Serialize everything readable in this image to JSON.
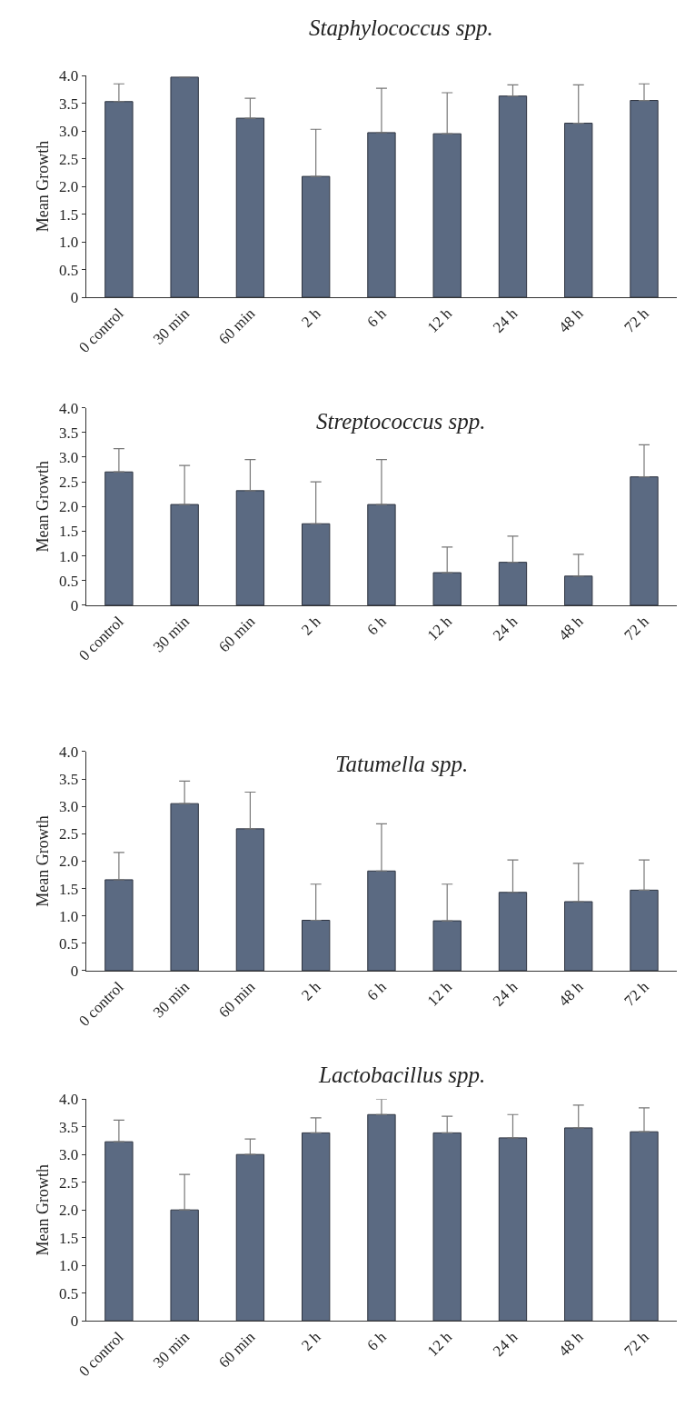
{
  "chart_data": [
    {
      "type": "bar",
      "title": "Staphylococcus spp.",
      "ylabel": "Mean Growth",
      "categories": [
        "0 control",
        "30 min",
        "60 min",
        "2 h",
        "6 h",
        "12 h",
        "24 h",
        "48 h",
        "72 h"
      ],
      "color": "#5b6a82",
      "values": [
        3.53,
        3.97,
        3.23,
        2.18,
        2.97,
        2.95,
        3.63,
        3.14,
        3.55
      ],
      "errors": [
        [
          3.53,
          3.85
        ],
        null,
        [
          3.23,
          3.59
        ],
        [
          2.18,
          3.03
        ],
        [
          2.97,
          3.77
        ],
        [
          2.95,
          3.69
        ],
        [
          3.63,
          3.83
        ],
        [
          3.14,
          3.83
        ],
        [
          3.55,
          3.85
        ]
      ],
      "ylim": [
        0,
        4
      ],
      "yticks": [
        {
          "value": 0,
          "label": "0"
        },
        {
          "value": 0.5,
          "label": "0.5"
        },
        {
          "value": 1,
          "label": "1.0"
        },
        {
          "value": 1.5,
          "label": "1.5"
        },
        {
          "value": 2,
          "label": "2.0"
        },
        {
          "value": 2.5,
          "label": "2.5"
        },
        {
          "value": 3,
          "label": "3.0"
        },
        {
          "value": 3.5,
          "label": "3.5"
        },
        {
          "value": 4,
          "label": "4.0"
        }
      ]
    },
    {
      "type": "bar",
      "title": "Streptococcus spp.",
      "ylabel": "Mean Growth",
      "categories": [
        "0 control",
        "30 min",
        "60 min",
        "2 h",
        "6 h",
        "12 h",
        "24 h",
        "48 h",
        "72 h"
      ],
      "color": "#5b6a82",
      "values": [
        2.7,
        2.04,
        2.32,
        1.65,
        2.04,
        0.66,
        0.87,
        0.59,
        2.6
      ],
      "errors": [
        [
          2.7,
          3.17
        ],
        [
          2.04,
          2.83
        ],
        [
          2.32,
          2.95
        ],
        [
          1.65,
          2.5
        ],
        [
          2.04,
          2.95
        ],
        [
          0.66,
          1.18
        ],
        [
          0.87,
          1.4
        ],
        [
          0.59,
          1.03
        ],
        [
          2.6,
          3.25
        ]
      ],
      "ylim": [
        0,
        4
      ],
      "yticks": [
        {
          "value": 0,
          "label": "0"
        },
        {
          "value": 0.5,
          "label": "0.5"
        },
        {
          "value": 1,
          "label": "1.0"
        },
        {
          "value": 1.5,
          "label": "1.5"
        },
        {
          "value": 2,
          "label": "2.0"
        },
        {
          "value": 2.5,
          "label": "2.5"
        },
        {
          "value": 3,
          "label": "3.0"
        },
        {
          "value": 3.5,
          "label": "3.5"
        },
        {
          "value": 4,
          "label": "4.0"
        }
      ]
    },
    {
      "type": "bar",
      "title": "Tatumella spp.",
      "ylabel": "Mean Growth",
      "categories": [
        "0 control",
        "30 min",
        "60 min",
        "2 h",
        "6 h",
        "12 h",
        "24 h",
        "48 h",
        "72 h"
      ],
      "color": "#5b6a82",
      "values": [
        1.66,
        3.05,
        2.59,
        0.92,
        1.82,
        0.91,
        1.43,
        1.26,
        1.47
      ],
      "errors": [
        [
          1.66,
          2.16
        ],
        [
          3.05,
          3.46
        ],
        [
          2.59,
          3.26
        ],
        [
          0.92,
          1.58
        ],
        [
          1.82,
          2.68
        ],
        [
          0.91,
          1.58
        ],
        [
          1.43,
          2.02
        ],
        [
          1.26,
          1.96
        ],
        [
          1.47,
          2.02
        ]
      ],
      "ylim": [
        0,
        4
      ],
      "yticks": [
        {
          "value": 0,
          "label": "0"
        },
        {
          "value": 0.5,
          "label": "0.5"
        },
        {
          "value": 1,
          "label": "1.0"
        },
        {
          "value": 1.5,
          "label": "1.5"
        },
        {
          "value": 2,
          "label": "2.0"
        },
        {
          "value": 2.5,
          "label": "2.5"
        },
        {
          "value": 3,
          "label": "3.0"
        },
        {
          "value": 3.5,
          "label": "3.5"
        },
        {
          "value": 4,
          "label": "4.0"
        }
      ]
    },
    {
      "type": "bar",
      "title": "Lactobacillus spp.",
      "ylabel": "Mean Growth",
      "categories": [
        "0 control",
        "30 min",
        "60 min",
        "2 h",
        "6 h",
        "12 h",
        "24 h",
        "48 h",
        "72 h"
      ],
      "color": "#5b6a82",
      "values": [
        3.23,
        2.0,
        3.0,
        3.39,
        3.72,
        3.39,
        3.3,
        3.48,
        3.41
      ],
      "errors": [
        [
          3.23,
          3.62
        ],
        [
          2.0,
          2.64
        ],
        [
          3.0,
          3.28
        ],
        [
          3.39,
          3.66
        ],
        [
          3.72,
          4.0
        ],
        [
          3.39,
          3.69
        ],
        [
          3.3,
          3.72
        ],
        [
          3.48,
          3.89
        ],
        [
          3.41,
          3.84
        ]
      ],
      "ylim": [
        0,
        4
      ],
      "yticks": [
        {
          "value": 0,
          "label": "0"
        },
        {
          "value": 0.5,
          "label": "0.5"
        },
        {
          "value": 1,
          "label": "1.0"
        },
        {
          "value": 1.5,
          "label": "1.5"
        },
        {
          "value": 2,
          "label": "2.0"
        },
        {
          "value": 2.5,
          "label": "2.5"
        },
        {
          "value": 3,
          "label": "3.0"
        },
        {
          "value": 3.5,
          "label": "3.5"
        },
        {
          "value": 4,
          "label": "4.0"
        }
      ]
    }
  ]
}
